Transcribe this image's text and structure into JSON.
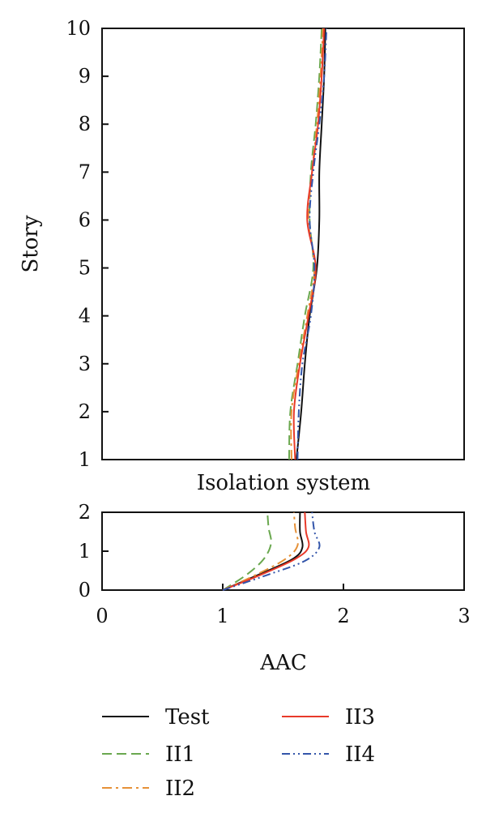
{
  "chart_data": [
    {
      "type": "line",
      "panel": "superstructure",
      "orientation": "x-vs-story",
      "ylabel": "Story",
      "xlabel": "",
      "xlim": [
        0,
        3
      ],
      "ylim": [
        1,
        10
      ],
      "yticks": [
        1,
        2,
        3,
        4,
        5,
        6,
        7,
        8,
        9,
        10
      ],
      "grid": false,
      "series": [
        {
          "name": "Test",
          "color": "#111111",
          "style": "solid",
          "points": [
            [
              1.61,
              1
            ],
            [
              1.65,
              2
            ],
            [
              1.68,
              3
            ],
            [
              1.72,
              4
            ],
            [
              1.78,
              5
            ],
            [
              1.8,
              6
            ],
            [
              1.8,
              7
            ],
            [
              1.82,
              8
            ],
            [
              1.84,
              9
            ],
            [
              1.85,
              10
            ]
          ]
        },
        {
          "name": "II1",
          "color": "#6aa84f",
          "style": "dash",
          "points": [
            [
              1.55,
              1
            ],
            [
              1.56,
              2
            ],
            [
              1.62,
              3
            ],
            [
              1.68,
              4
            ],
            [
              1.75,
              5
            ],
            [
              1.72,
              6
            ],
            [
              1.73,
              7
            ],
            [
              1.77,
              8
            ],
            [
              1.8,
              9
            ],
            [
              1.82,
              10
            ]
          ]
        },
        {
          "name": "II2",
          "color": "#e69138",
          "style": "dashdot",
          "points": [
            [
              1.57,
              1
            ],
            [
              1.57,
              2
            ],
            [
              1.63,
              3
            ],
            [
              1.7,
              4
            ],
            [
              1.76,
              5
            ],
            [
              1.71,
              6
            ],
            [
              1.74,
              7
            ],
            [
              1.78,
              8
            ],
            [
              1.81,
              9
            ],
            [
              1.83,
              10
            ]
          ]
        },
        {
          "name": "II3",
          "color": "#e83a2a",
          "style": "solid",
          "points": [
            [
              1.6,
              1
            ],
            [
              1.59,
              2
            ],
            [
              1.64,
              3
            ],
            [
              1.71,
              4
            ],
            [
              1.77,
              5
            ],
            [
              1.7,
              6
            ],
            [
              1.74,
              7
            ],
            [
              1.79,
              8
            ],
            [
              1.82,
              9
            ],
            [
              1.84,
              10
            ]
          ]
        },
        {
          "name": "II4",
          "color": "#3355aa",
          "style": "dashdotdot",
          "points": [
            [
              1.62,
              1
            ],
            [
              1.63,
              2
            ],
            [
              1.66,
              3
            ],
            [
              1.73,
              4
            ],
            [
              1.76,
              5
            ],
            [
              1.72,
              6
            ],
            [
              1.75,
              7
            ],
            [
              1.8,
              8
            ],
            [
              1.84,
              9
            ],
            [
              1.86,
              10
            ]
          ]
        }
      ]
    },
    {
      "type": "line",
      "panel": "isolation",
      "orientation": "x-vs-story",
      "title": "Isolation system",
      "xlabel": "AAC",
      "ylabel": "",
      "xlim": [
        0,
        3
      ],
      "ylim": [
        0,
        2
      ],
      "xticks": [
        0,
        1,
        2,
        3
      ],
      "yticks": [
        0,
        1,
        2
      ],
      "grid": false,
      "series": [
        {
          "name": "Test",
          "color": "#111111",
          "style": "solid",
          "points": [
            [
              1.0,
              0
            ],
            [
              1.3,
              0.4
            ],
            [
              1.58,
              0.8
            ],
            [
              1.66,
              1.1
            ],
            [
              1.64,
              1.5
            ],
            [
              1.64,
              2.0
            ]
          ]
        },
        {
          "name": "II1",
          "color": "#6aa84f",
          "style": "dash",
          "points": [
            [
              1.0,
              0
            ],
            [
              1.2,
              0.4
            ],
            [
              1.34,
              0.8
            ],
            [
              1.4,
              1.2
            ],
            [
              1.38,
              1.6
            ],
            [
              1.37,
              2.0
            ]
          ]
        },
        {
          "name": "II2",
          "color": "#e69138",
          "style": "dashdot",
          "points": [
            [
              1.0,
              0
            ],
            [
              1.28,
              0.4
            ],
            [
              1.52,
              0.8
            ],
            [
              1.62,
              1.15
            ],
            [
              1.6,
              1.6
            ],
            [
              1.59,
              2.0
            ]
          ]
        },
        {
          "name": "II3",
          "color": "#e83a2a",
          "style": "solid",
          "points": [
            [
              1.0,
              0
            ],
            [
              1.32,
              0.4
            ],
            [
              1.6,
              0.8
            ],
            [
              1.71,
              1.1
            ],
            [
              1.69,
              1.5
            ],
            [
              1.68,
              2.0
            ]
          ]
        },
        {
          "name": "II4",
          "color": "#3355aa",
          "style": "dashdotdot",
          "points": [
            [
              1.0,
              0
            ],
            [
              1.38,
              0.4
            ],
            [
              1.68,
              0.75
            ],
            [
              1.8,
              1.1
            ],
            [
              1.76,
              1.5
            ],
            [
              1.74,
              2.0
            ]
          ]
        }
      ]
    }
  ],
  "legend": {
    "placement": "bottom",
    "items": [
      {
        "label": "Test",
        "color": "#111111",
        "style": "solid"
      },
      {
        "label": "II3",
        "color": "#e83a2a",
        "style": "solid"
      },
      {
        "label": "II1",
        "color": "#6aa84f",
        "style": "dash"
      },
      {
        "label": "II4",
        "color": "#3355aa",
        "style": "dashdotdot"
      },
      {
        "label": "II2",
        "color": "#e69138",
        "style": "dashdot"
      }
    ]
  }
}
